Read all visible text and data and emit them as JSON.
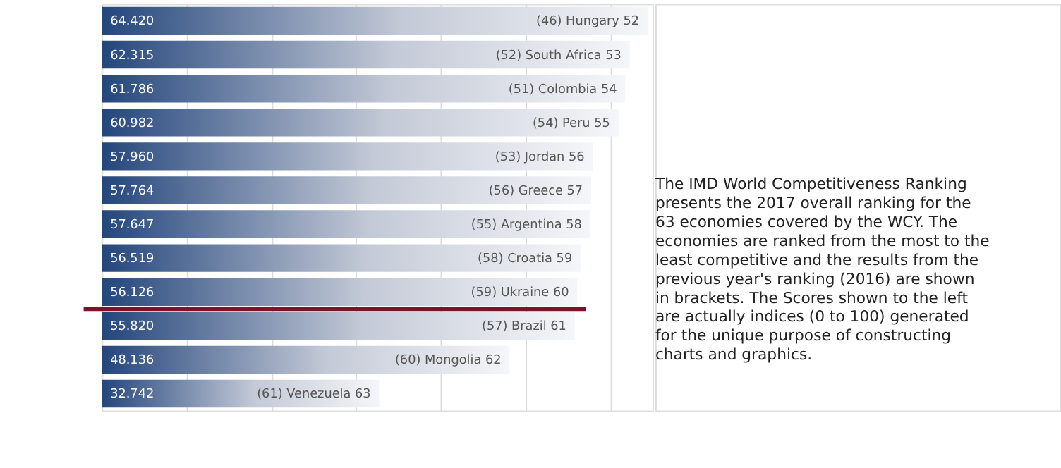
{
  "chart_data": {
    "type": "bar",
    "orientation": "horizontal",
    "color": "#24467c",
    "categories": [
      "(46) Hungary 52",
      "(52) South Africa 53",
      "(51) Colombia 54",
      "(54) Peru 55",
      "(53) Jordan 56",
      "(56) Greece 57",
      "(55) Argentina 58",
      "(58) Croatia 59",
      "(59) Ukraine 60",
      "(57) Brazil 61",
      "(60) Mongolia 62",
      "(61) Venezuela 63"
    ],
    "values": [
      64.42,
      62.315,
      61.786,
      60.982,
      57.96,
      57.764,
      57.647,
      56.519,
      56.126,
      55.82,
      48.136,
      32.742
    ],
    "value_labels": [
      "64.420",
      "62.315",
      "61.786",
      "60.982",
      "57.960",
      "57.764",
      "57.647",
      "56.519",
      "56.126",
      "55.820",
      "48.136",
      "32.742"
    ],
    "xlim": [
      0,
      65
    ],
    "xticks": [
      {
        "value": 10,
        "label": null
      },
      {
        "value": 20,
        "label": null
      },
      {
        "value": 30,
        "label": null
      },
      {
        "value": 40,
        "label": null
      },
      {
        "value": 50,
        "label": null
      },
      {
        "value": 60,
        "label": null
      }
    ],
    "grid": "x",
    "tick_labels": false,
    "ref_lines": [
      {
        "axis": "y",
        "value": "(59) Ukraine 60",
        "color": "#7a1426"
      }
    ],
    "annotations": [
      "The IMD World Competitiveness Ranking presents the 2017 overall ranking for the 63 economies covered by the WCY. The economies are ranked from the most to the least competitive and the results from the previous year's ranking (2016) are shown in brackets. The Scores shown to the left are actually indices (0 to 100) generated for the unique purpose of constructing charts and graphics."
    ]
  }
}
